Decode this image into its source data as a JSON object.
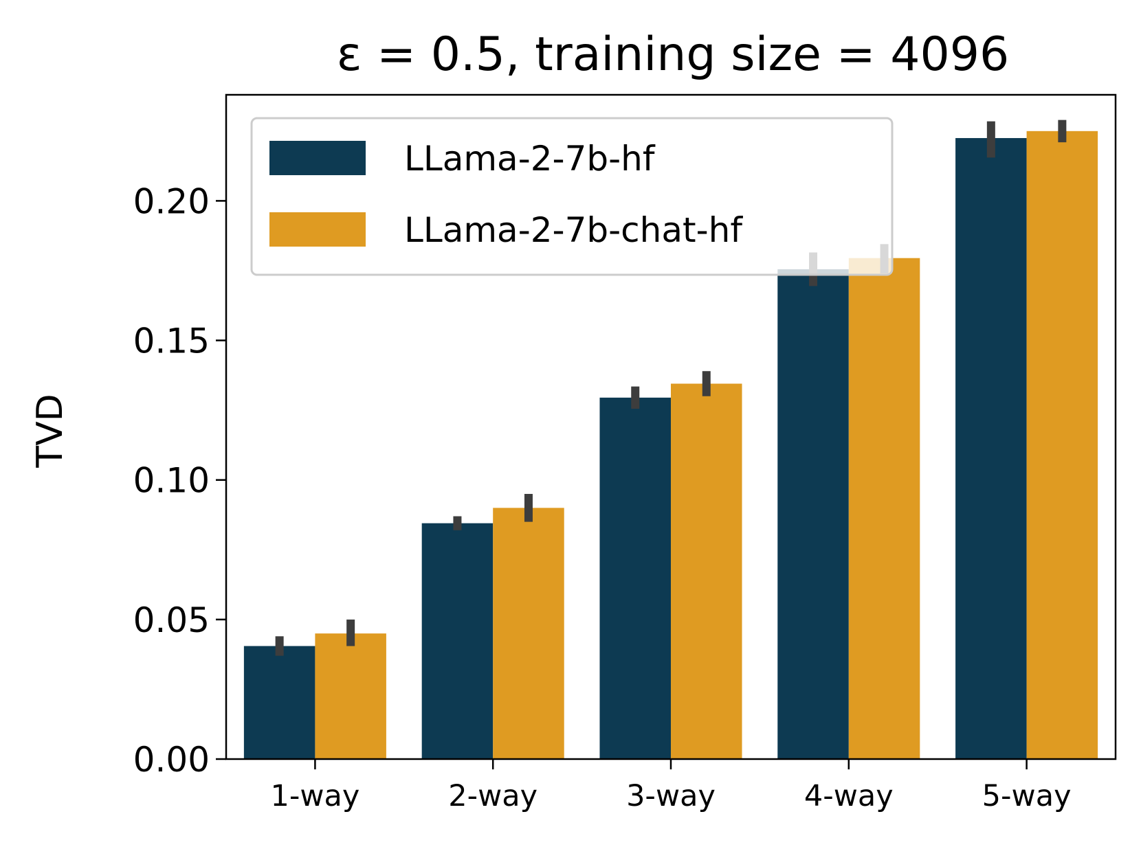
{
  "chart_data": {
    "type": "bar",
    "title": "ε = 0.5, training size = 4096",
    "xlabel": "",
    "ylabel": "TVD",
    "categories": [
      "1-way",
      "2-way",
      "3-way",
      "4-way",
      "5-way"
    ],
    "ylim": [
      0,
      0.238
    ],
    "yticks": [
      0.0,
      0.05,
      0.1,
      0.15,
      0.2
    ],
    "ytick_labels": [
      "0.00",
      "0.05",
      "0.10",
      "0.15",
      "0.20"
    ],
    "grid": false,
    "legend_position": "top-left",
    "series": [
      {
        "name": "LLama-2-7b-hf",
        "color": "#0d3a52",
        "values": [
          0.0405,
          0.0845,
          0.1295,
          0.1755,
          0.2225
        ],
        "error_low": [
          0.037,
          0.082,
          0.1255,
          0.1695,
          0.2155
        ],
        "error_high": [
          0.044,
          0.087,
          0.1335,
          0.1815,
          0.2285
        ]
      },
      {
        "name": "LLama-2-7b-chat-hf",
        "color": "#df9b22",
        "values": [
          0.045,
          0.09,
          0.1345,
          0.1795,
          0.225
        ],
        "error_low": [
          0.0405,
          0.085,
          0.13,
          0.174,
          0.221
        ],
        "error_high": [
          0.05,
          0.095,
          0.139,
          0.1845,
          0.229
        ]
      }
    ],
    "error_bar_color": "#3d3d3d"
  }
}
